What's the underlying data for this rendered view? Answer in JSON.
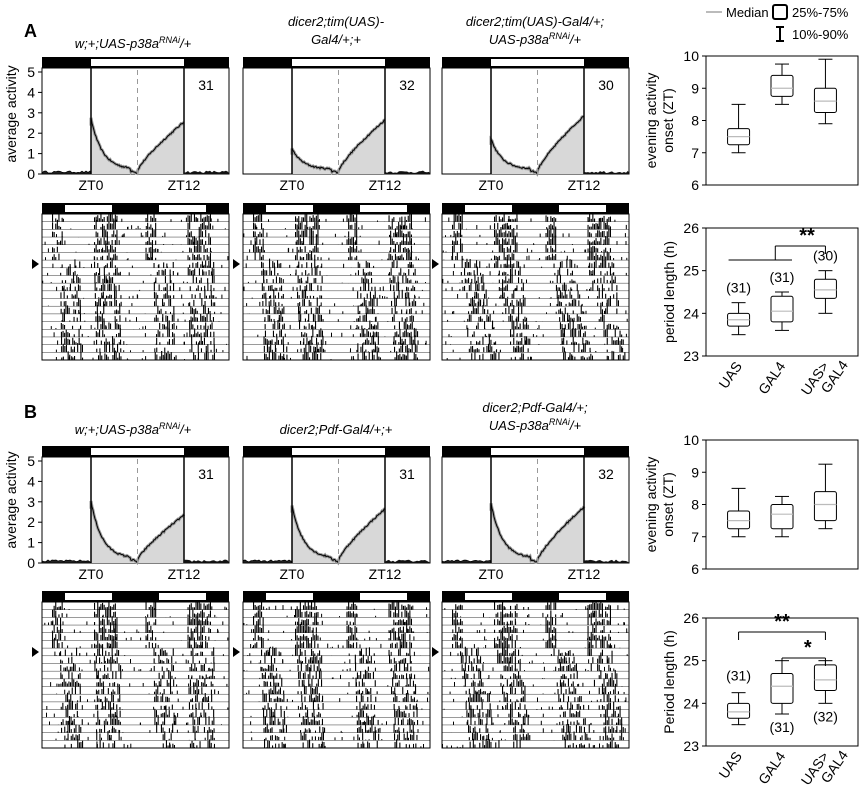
{
  "panel_letters": [
    "A",
    "B"
  ],
  "legend": {
    "median_label": "Median",
    "box_label": "25%-75%",
    "whisker_label": "10%-90%"
  },
  "panel_A": {
    "genotypes": [
      {
        "line1": "w;+;UAS-p38a",
        "sup": "RNAi",
        "tail": "/+",
        "line2": ""
      },
      {
        "line1": "dicer2;tim(UAS)-",
        "sup": "",
        "tail": "",
        "line2": "Gal4/+;+"
      },
      {
        "line1": "dicer2;tim(UAS)-Gal4/+;",
        "sup": "",
        "tail": "",
        "line2": "UAS-p38a",
        "sup2": "RNAi",
        "tail2": "/+"
      }
    ],
    "n_labels": [
      "31",
      "32",
      "30"
    ]
  },
  "panel_B": {
    "genotypes": [
      {
        "line1": "w;+;UAS-p38a",
        "sup": "RNAi",
        "tail": "/+",
        "line2": ""
      },
      {
        "line1": "dicer2;Pdf-Gal4/+;+",
        "sup": "",
        "tail": "",
        "line2": ""
      },
      {
        "line1": "dicer2;Pdf-Gal4/+;",
        "sup": "",
        "tail": "",
        "line2": "UAS-p38a",
        "sup2": "RNAi",
        "tail2": "/+"
      }
    ],
    "n_labels": [
      "31",
      "31",
      "32"
    ]
  },
  "chart_data": [
    {
      "id": "A-activity",
      "type": "area",
      "ylabel": "average activity",
      "ylim": [
        0,
        5
      ],
      "yticks": [
        0,
        1,
        2,
        3,
        4,
        5
      ],
      "xticklabels": [
        "ZT0",
        "ZT12"
      ],
      "series": [
        {
          "n": "31",
          "shape": {
            "m1": 2.5,
            "m2": 2.3,
            "d1": 0.15,
            "dusk": 2.4
          }
        },
        {
          "n": "32",
          "shape": {
            "m1": 1.0,
            "m2": 2.0,
            "d1": 0.2,
            "dusk": 2.5
          }
        },
        {
          "n": "30",
          "shape": {
            "m1": 1.5,
            "m2": 2.5,
            "d1": 0.2,
            "dusk": 2.7
          }
        }
      ]
    },
    {
      "id": "A-onset",
      "type": "box",
      "ylabel": "evening activity onset (ZT)",
      "ylim": [
        6,
        10
      ],
      "yticks": [
        6,
        7,
        8,
        9,
        10
      ],
      "categories": [
        "UAS",
        "GAL4",
        "UAS>GAL4"
      ],
      "boxes": [
        {
          "p10": 7.0,
          "q1": 7.25,
          "median": 7.5,
          "q3": 7.75,
          "p90": 8.5
        },
        {
          "p10": 8.5,
          "q1": 8.75,
          "median": 9.0,
          "q3": 9.4,
          "p90": 9.75
        },
        {
          "p10": 7.9,
          "q1": 8.25,
          "median": 8.6,
          "q3": 9.0,
          "p90": 9.9
        }
      ]
    },
    {
      "id": "A-period",
      "type": "box",
      "ylabel": "period length (h)",
      "ylim": [
        23,
        26
      ],
      "yticks": [
        23,
        24,
        25,
        26
      ],
      "categories": [
        "UAS",
        "GAL4",
        "UAS>GAL4"
      ],
      "boxes": [
        {
          "p10": 23.5,
          "q1": 23.7,
          "median": 23.85,
          "q3": 24.0,
          "p90": 24.25,
          "n": "(31)"
        },
        {
          "p10": 23.6,
          "q1": 23.8,
          "median": 24.05,
          "q3": 24.4,
          "p90": 24.5,
          "n": "(31)"
        },
        {
          "p10": 24.0,
          "q1": 24.35,
          "median": 24.55,
          "q3": 24.8,
          "p90": 25.0,
          "n": "(30)"
        }
      ],
      "significance": [
        "**"
      ]
    },
    {
      "id": "B-activity",
      "type": "area",
      "ylabel": "average activity",
      "ylim": [
        0,
        5
      ],
      "yticks": [
        0,
        1,
        2,
        3,
        4,
        5
      ],
      "xticklabels": [
        "ZT0",
        "ZT12"
      ],
      "series": [
        {
          "n": "31",
          "shape": {
            "m1": 2.8,
            "m2": 2.4,
            "d1": 0.15,
            "dusk": 2.2
          }
        },
        {
          "n": "31",
          "shape": {
            "m1": 2.6,
            "m2": 2.4,
            "d1": 0.2,
            "dusk": 2.5
          }
        },
        {
          "n": "32",
          "shape": {
            "m1": 2.7,
            "m2": 2.5,
            "d1": 0.25,
            "dusk": 2.6
          }
        }
      ]
    },
    {
      "id": "B-onset",
      "type": "box",
      "ylabel": "evening activity onset (ZT)",
      "ylim": [
        6,
        10
      ],
      "yticks": [
        6,
        7,
        8,
        9,
        10
      ],
      "categories": [
        "UAS",
        "GAL4",
        "UAS>GAL4"
      ],
      "boxes": [
        {
          "p10": 7.0,
          "q1": 7.25,
          "median": 7.5,
          "q3": 7.8,
          "p90": 8.5
        },
        {
          "p10": 7.0,
          "q1": 7.25,
          "median": 7.7,
          "q3": 8.0,
          "p90": 8.25
        },
        {
          "p10": 7.25,
          "q1": 7.5,
          "median": 8.0,
          "q3": 8.4,
          "p90": 9.25
        }
      ]
    },
    {
      "id": "B-period",
      "type": "box",
      "ylabel": "Period length (h)",
      "ylim": [
        23,
        26
      ],
      "yticks": [
        23,
        24,
        25,
        26
      ],
      "categories": [
        "UAS",
        "GAL4",
        "UAS>GAL4"
      ],
      "boxes": [
        {
          "p10": 23.5,
          "q1": 23.65,
          "median": 23.8,
          "q3": 24.0,
          "p90": 24.25,
          "n": "(31)"
        },
        {
          "p10": 23.75,
          "q1": 24.0,
          "median": 24.4,
          "q3": 24.7,
          "p90": 25.0,
          "n": "(31)"
        },
        {
          "p10": 24.0,
          "q1": 24.3,
          "median": 24.55,
          "q3": 24.9,
          "p90": 25.0,
          "n": "(32)"
        }
      ],
      "significance": [
        "**",
        "*"
      ]
    }
  ],
  "actograms": [
    {
      "panel": "A",
      "pattern": "wt"
    },
    {
      "panel": "A",
      "pattern": "mild"
    },
    {
      "panel": "A",
      "pattern": "long"
    },
    {
      "panel": "B",
      "pattern": "wt"
    },
    {
      "panel": "B",
      "pattern": "mild"
    },
    {
      "panel": "B",
      "pattern": "long"
    }
  ]
}
